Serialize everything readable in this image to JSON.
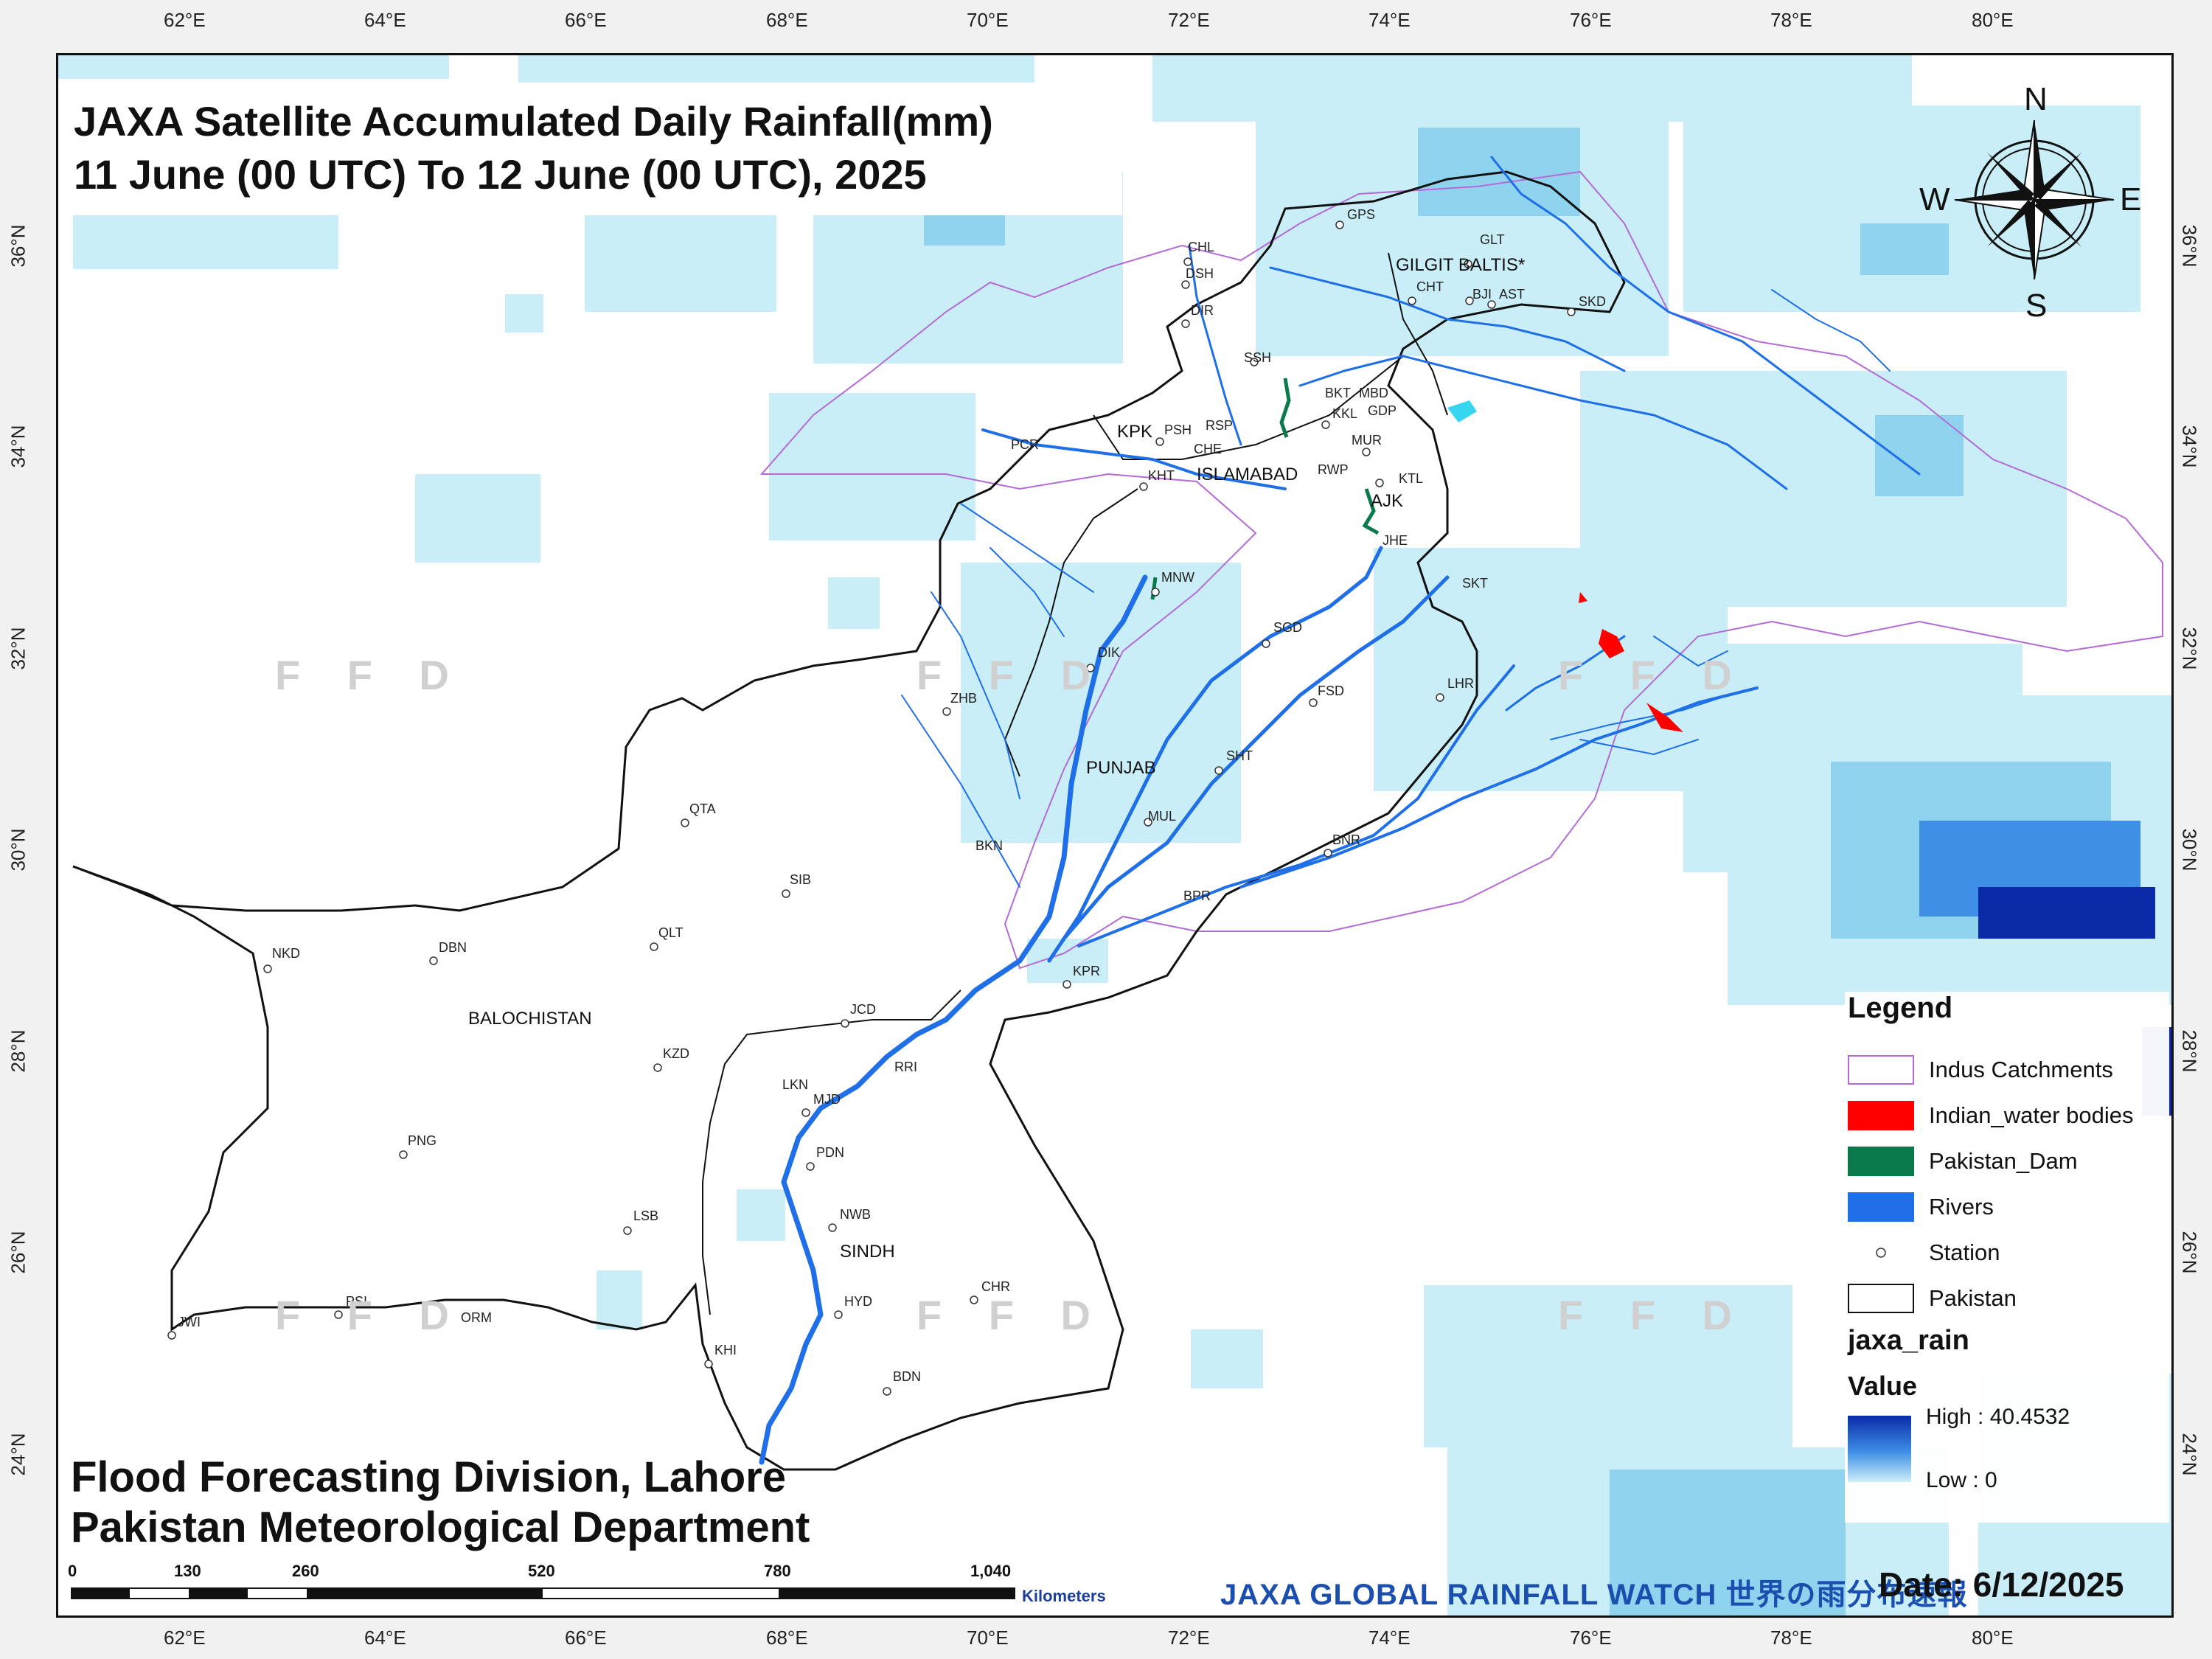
{
  "title": {
    "line1": "JAXA Satellite Accumulated Daily Rainfall(mm)",
    "line2": "11 June (00 UTC) To 12 June (00 UTC), 2025"
  },
  "footer": {
    "line1": "Flood Forecasting Division, Lahore",
    "line2": "Pakistan Meteorological Department"
  },
  "date_label": "Date: 6/12/2025",
  "watermark": "JAXA GLOBAL RAINFALL WATCH 世界の雨分布速報",
  "ffd_watermark": "F F D",
  "axes": {
    "lon_ticks": [
      "62°E",
      "64°E",
      "66°E",
      "68°E",
      "70°E",
      "72°E",
      "74°E",
      "76°E",
      "78°E",
      "80°E"
    ],
    "lat_ticks": [
      "36°N",
      "34°N",
      "32°N",
      "30°N",
      "28°N",
      "26°N",
      "24°N"
    ]
  },
  "compass": {
    "n": "N",
    "s": "S",
    "e": "E",
    "w": "W"
  },
  "regions": [
    "BALOCHISTAN",
    "SINDH",
    "PUNJAB",
    "KPK",
    "ISLAMABAD",
    "AJK",
    "GILGIT BALTIS*"
  ],
  "stations": [
    "GPS",
    "GLT",
    "CHL",
    "DSH",
    "DIR",
    "CHT",
    "BJI",
    "AST",
    "SKD",
    "SSH",
    "BKT",
    "MBD",
    "GDP",
    "KKL",
    "MUR",
    "PSH",
    "RSP",
    "KPK",
    "CHE",
    "PCR",
    "KHT",
    "RWP",
    "KTL",
    "JHE",
    "MNW",
    "SKT",
    "SGD",
    "DIK",
    "FSD",
    "LHR",
    "ZHB",
    "SHT",
    "QTA",
    "MUL",
    "BKN",
    "SIB",
    "BNR",
    "BPR",
    "QLT",
    "NKD",
    "DBN",
    "KPR",
    "JCD",
    "KZD",
    "RRI",
    "LKN",
    "MJD",
    "PNG",
    "PDN",
    "NWB",
    "LSB",
    "PSI",
    "ORM",
    "JWI",
    "HYD",
    "CHR",
    "KHI",
    "BDN"
  ],
  "legend": {
    "title": "Legend",
    "items": [
      {
        "label": "Indus Catchments",
        "fill": "#ffffff",
        "stroke": "#b36bd6"
      },
      {
        "label": "Indian_water bodies",
        "fill": "#ff0000",
        "stroke": "#ff0000"
      },
      {
        "label": "Pakistan_Dam",
        "fill": "#0a7a4d",
        "stroke": "#0a7a4d"
      },
      {
        "label": "Rivers",
        "fill": "#1f6fe8",
        "stroke": "#1f6fe8"
      },
      {
        "label": "Station",
        "fill": "none",
        "stroke": "#333333"
      },
      {
        "label": "Pakistan",
        "fill": "#ffffff",
        "stroke": "#111111"
      }
    ],
    "raster_title": "jaxa_rain",
    "value_title": "Value",
    "high": "High : 40.4532",
    "low": "Low : 0"
  },
  "scale_bar": {
    "numbers": [
      "0",
      "130",
      "260",
      "520",
      "780",
      "1,040"
    ],
    "unit": "Kilometers"
  },
  "colors": {
    "rain_light": "#c9eef7",
    "rain_mid": "#8fd3ee",
    "rain_high": "#0a2aa8",
    "river": "#1f6fe8",
    "catchment": "#b36bd6",
    "dam": "#0a7a4d",
    "water_body": "#ff0000"
  }
}
